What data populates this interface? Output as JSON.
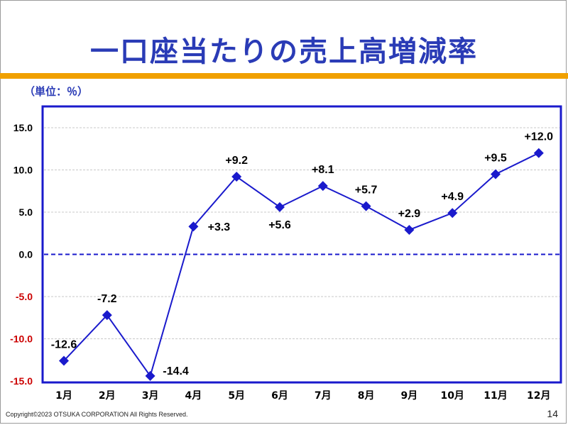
{
  "slide": {
    "title": "一口座当たりの売上高増減率",
    "unit_label": "（単位：％）",
    "copyright": "Copyright©2023 OTSUKA CORPORATION All Rights Reserved.",
    "page_number": "14"
  },
  "chart_data": {
    "type": "line",
    "title": "",
    "xlabel": "",
    "ylabel": "",
    "categories": [
      "1月",
      "2月",
      "3月",
      "4月",
      "5月",
      "6月",
      "7月",
      "8月",
      "9月",
      "10月",
      "11月",
      "12月"
    ],
    "series": [
      {
        "values": [
          -12.6,
          -7.2,
          -14.4,
          3.3,
          9.2,
          5.6,
          8.1,
          5.7,
          2.9,
          4.9,
          9.5,
          12.0
        ],
        "labels": [
          "-12.6",
          "-7.2",
          "-14.4",
          "+3.3",
          "+9.2",
          "+5.6",
          "+8.1",
          "+5.7",
          "+2.9",
          "+4.9",
          "+9.5",
          "+12.0"
        ]
      }
    ],
    "ylim": [
      -15.0,
      15.0
    ],
    "yticks": [
      15.0,
      10.0,
      5.0,
      0.0,
      -5.0,
      -10.0,
      -15.0
    ],
    "ytick_labels": [
      "15.0",
      "10.0",
      "5.0",
      "0.0",
      "-5.0",
      "-10.0",
      "-15.0"
    ],
    "grid": true,
    "zero_line": "dashed",
    "colors": {
      "line": "#1a1acc",
      "marker": "#1a1acc",
      "frame": "#1a1acc",
      "positive_tick": "#000000",
      "negative_tick": "#cc0000",
      "grid": "#c8c8c8"
    }
  }
}
